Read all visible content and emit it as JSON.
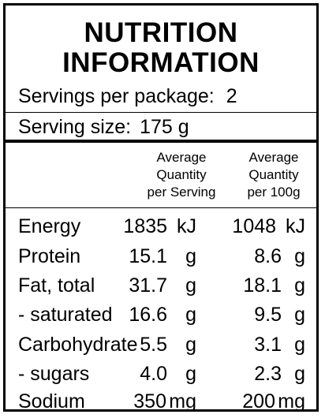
{
  "title_line1": "NUTRITION",
  "title_line2": "INFORMATION",
  "servings_label": "Servings per package:",
  "servings_value": "2",
  "serving_size_label": "Serving size:",
  "serving_size_value": "175 g",
  "col_serving": [
    "Average",
    "Quantity",
    "per Serving"
  ],
  "col_100g": [
    "Average",
    "Quantity",
    "per 100g"
  ],
  "rows": [
    {
      "name": "Energy",
      "serving": "1835",
      "serving_unit": "kJ",
      "per100": "1048",
      "per100_unit": "kJ"
    },
    {
      "name": "Protein",
      "serving": "15.1",
      "serving_unit": "g",
      "per100": "8.6",
      "per100_unit": "g"
    },
    {
      "name": "Fat, total",
      "serving": "31.7",
      "serving_unit": "g",
      "per100": "18.1",
      "per100_unit": "g"
    },
    {
      "name": "- saturated",
      "serving": "16.6",
      "serving_unit": "g",
      "per100": "9.5",
      "per100_unit": "g"
    },
    {
      "name": "Carbohydrate",
      "serving": "5.5",
      "serving_unit": "g",
      "per100": "3.1",
      "per100_unit": "g"
    },
    {
      "name": "- sugars",
      "serving": "4.0",
      "serving_unit": "g",
      "per100": "2.3",
      "per100_unit": "g"
    },
    {
      "name": "Sodium",
      "serving": "350",
      "serving_unit": "mg",
      "per100": "200",
      "per100_unit": "mg"
    }
  ]
}
